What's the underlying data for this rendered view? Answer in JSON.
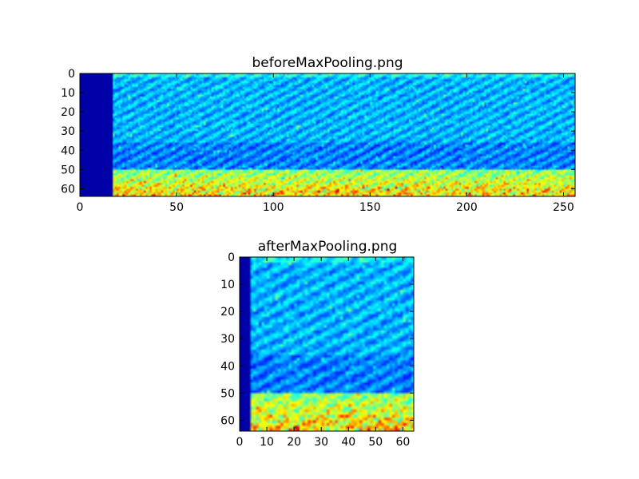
{
  "chart_data": [
    {
      "type": "heatmap",
      "title": "beforeMaxPooling.png",
      "colormap": "jet",
      "xlim": [
        0,
        256
      ],
      "ylim": [
        64,
        0
      ],
      "x_ticks": [
        "0",
        "50",
        "100",
        "150",
        "200",
        "250"
      ],
      "y_ticks": [
        "0",
        "10",
        "20",
        "30",
        "40",
        "50",
        "60"
      ],
      "empty_columns_end": 17,
      "high_intensity_rows_start": 50
    },
    {
      "type": "heatmap",
      "title": "afterMaxPooling.png",
      "colormap": "jet",
      "xlim": [
        0,
        64
      ],
      "ylim": [
        64,
        0
      ],
      "x_ticks": [
        "0",
        "10",
        "20",
        "30",
        "40",
        "50",
        "60"
      ],
      "y_ticks": [
        "0",
        "10",
        "20",
        "30",
        "40",
        "50",
        "60"
      ],
      "empty_columns_end": 4,
      "high_intensity_rows_start": 50
    }
  ]
}
